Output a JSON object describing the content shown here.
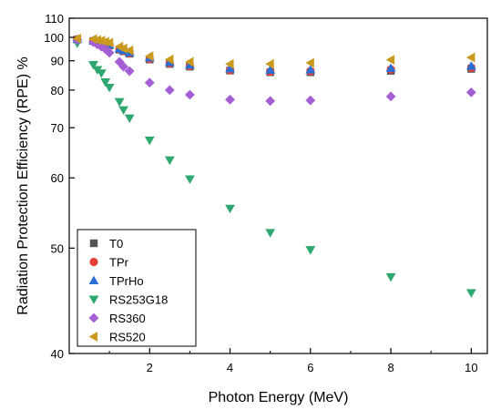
{
  "chart_data": {
    "type": "scatter",
    "xlabel": "Photon Energy (MeV)",
    "ylabel": "Radiation Protection Efficiency (RPE) %",
    "xlim": [
      0,
      10.4
    ],
    "ylim": [
      40,
      110
    ],
    "y_scale": "reciprocal",
    "x_ticks": [
      2,
      4,
      6,
      8,
      10
    ],
    "y_ticks": [
      40,
      50,
      60,
      70,
      80,
      90,
      100,
      110
    ],
    "grid": false,
    "legend_position": "bottom-left",
    "series": [
      {
        "name": "T0",
        "marker": "square",
        "color": "#555555",
        "x": [
          0.2,
          0.6,
          0.7,
          0.8,
          0.9,
          1.0,
          1.25,
          1.35,
          1.5,
          2.0,
          2.5,
          3.0,
          4.0,
          5.0,
          6.0,
          8.0,
          10.0
        ],
        "y": [
          99.0,
          98.3,
          97.8,
          97.3,
          96.8,
          96.3,
          94.5,
          93.8,
          92.8,
          90.5,
          88.8,
          87.8,
          86.4,
          85.8,
          85.8,
          86.3,
          87.0
        ]
      },
      {
        "name": "TPr",
        "marker": "circle",
        "color": "#e8413c",
        "x": [
          0.2,
          0.6,
          0.7,
          0.8,
          0.9,
          1.0,
          1.25,
          1.35,
          1.5,
          2.0,
          2.5,
          3.0,
          4.0,
          5.0,
          6.0,
          8.0,
          10.0
        ],
        "y": [
          99.0,
          98.4,
          97.9,
          97.4,
          96.9,
          96.4,
          94.7,
          94.0,
          93.0,
          90.8,
          89.0,
          88.0,
          86.6,
          86.0,
          86.2,
          86.8,
          87.4
        ]
      },
      {
        "name": "TPrHo",
        "marker": "triangle-up",
        "color": "#2b6fd6",
        "x": [
          0.2,
          0.6,
          0.7,
          0.8,
          0.9,
          1.0,
          1.25,
          1.35,
          1.5,
          2.0,
          2.5,
          3.0,
          4.0,
          5.0,
          6.0,
          8.0,
          10.0
        ],
        "y": [
          99.1,
          98.5,
          98.0,
          97.5,
          97.0,
          96.6,
          94.9,
          94.2,
          93.3,
          91.2,
          89.4,
          88.4,
          87.1,
          86.6,
          86.7,
          87.2,
          88.0
        ]
      },
      {
        "name": "RS253G18",
        "marker": "triangle-down",
        "color": "#2ea86e",
        "x": [
          0.2,
          0.6,
          0.7,
          0.8,
          0.9,
          1.0,
          1.25,
          1.35,
          1.5,
          2.0,
          2.5,
          3.0,
          4.0,
          5.0,
          6.0,
          8.0,
          10.0
        ],
        "y": [
          97.3,
          88.5,
          86.7,
          85.5,
          82.5,
          80.8,
          76.6,
          74.4,
          72.3,
          67.2,
          63.2,
          59.8,
          55.2,
          51.9,
          49.8,
          46.8,
          45.2
        ]
      },
      {
        "name": "RS360",
        "marker": "diamond",
        "color": "#a45fd4",
        "x": [
          0.2,
          0.6,
          0.7,
          0.8,
          0.9,
          1.0,
          1.25,
          1.35,
          1.5,
          2.0,
          2.5,
          3.0,
          4.0,
          5.0,
          6.0,
          8.0,
          10.0
        ],
        "y": [
          98.8,
          97.8,
          96.8,
          95.8,
          94.7,
          93.2,
          89.6,
          87.8,
          86.2,
          82.3,
          80.0,
          78.6,
          77.2,
          76.8,
          77.0,
          78.1,
          79.3
        ]
      },
      {
        "name": "RS520",
        "marker": "triangle-left",
        "color": "#c99a1c",
        "x": [
          0.2,
          0.6,
          0.7,
          0.8,
          0.9,
          1.0,
          1.25,
          1.35,
          1.5,
          2.0,
          2.5,
          3.0,
          4.0,
          5.0,
          6.0,
          8.0,
          10.0
        ],
        "y": [
          99.5,
          99.2,
          98.8,
          98.5,
          98.0,
          97.6,
          95.8,
          95.0,
          94.2,
          91.8,
          90.5,
          89.6,
          88.8,
          88.8,
          89.2,
          90.4,
          91.3
        ]
      }
    ]
  }
}
